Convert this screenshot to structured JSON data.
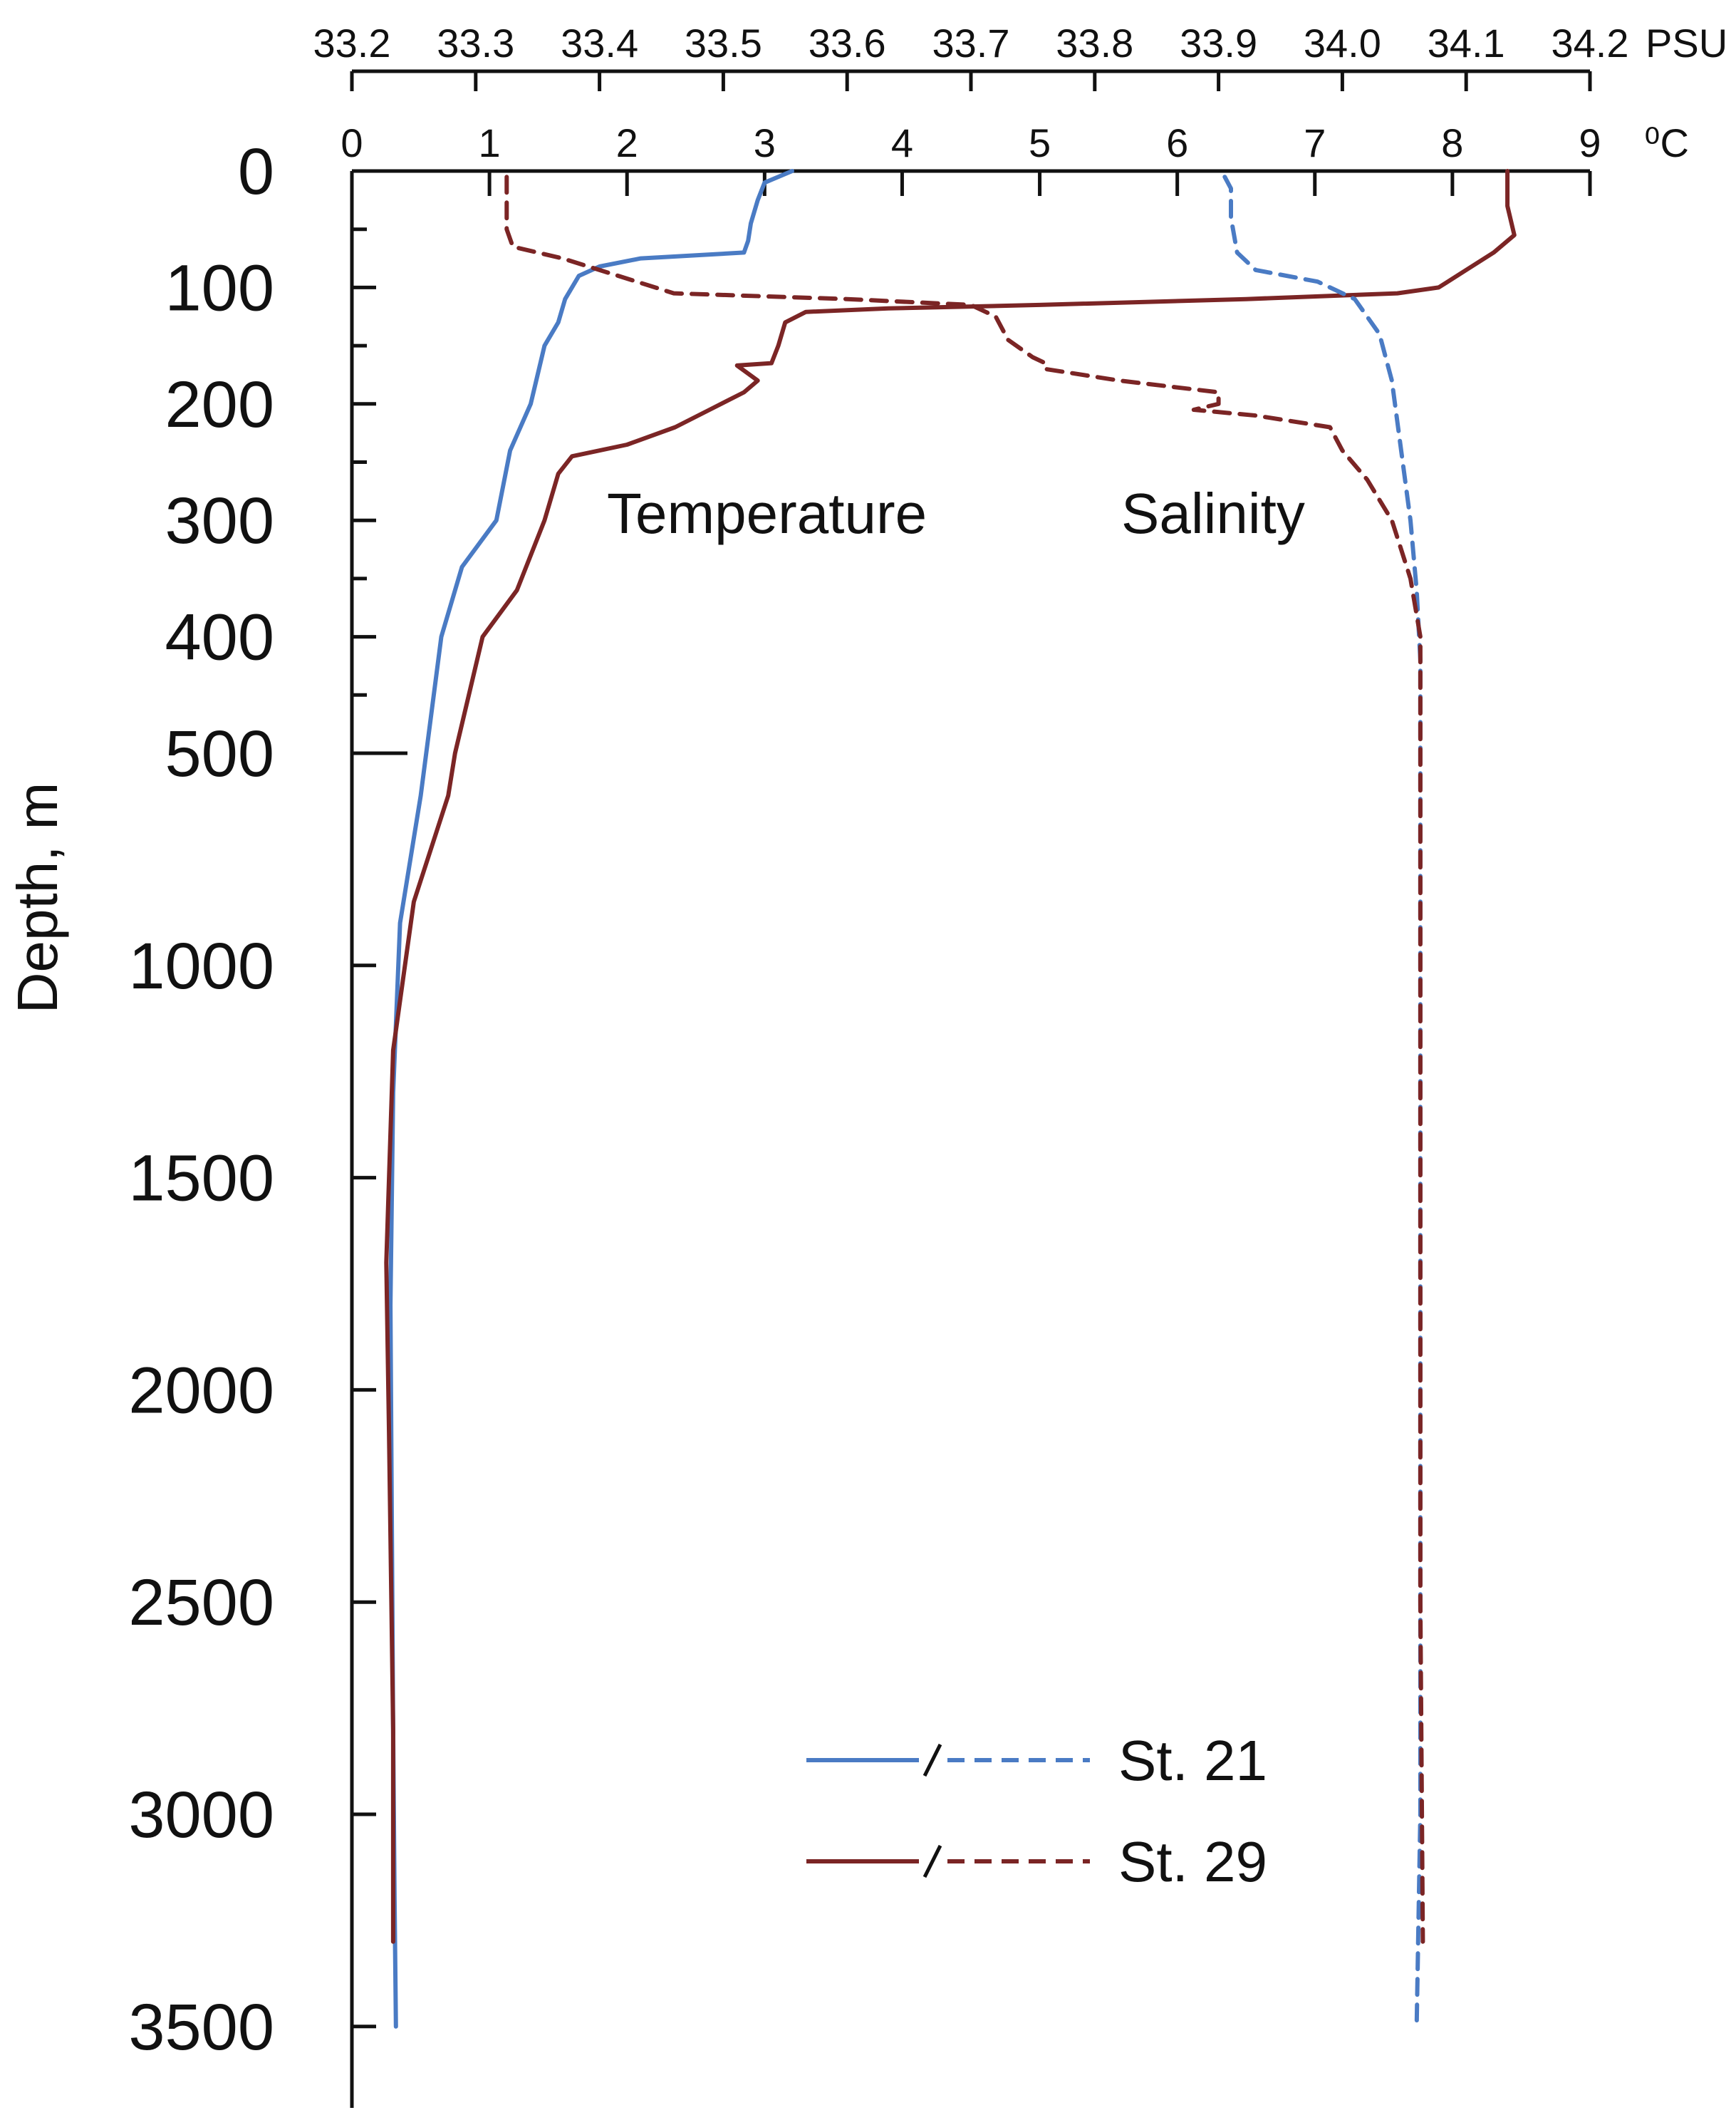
{
  "chart_data": {
    "type": "line",
    "title": "",
    "ylabel": "Depth, m",
    "y_axis": {
      "ticks": [
        0,
        100,
        200,
        300,
        400,
        500,
        1000,
        1500,
        2000,
        2500,
        3000,
        3500
      ],
      "tick_labels": [
        "0",
        "100",
        "200",
        "300",
        "400",
        "500",
        "1000",
        "1500",
        "2000",
        "2500",
        "3000",
        "3500"
      ],
      "note": "broken scale: 0-500 m expanded, 500-3500 m compressed",
      "reversed": true
    },
    "x_axis_salinity": {
      "unit": "PSU",
      "ticks": [
        33.2,
        33.3,
        33.4,
        33.5,
        33.6,
        33.7,
        33.8,
        33.9,
        34.0,
        34.1,
        34.2
      ],
      "tick_labels": [
        "33.2",
        "33.3",
        "33.4",
        "33.5",
        "33.6",
        "33.7",
        "33.8",
        "33.9",
        "34.0",
        "34.1",
        "34.2"
      ]
    },
    "x_axis_temperature": {
      "unit": "⁰C",
      "ticks": [
        0,
        1,
        2,
        3,
        4,
        5,
        6,
        7,
        8,
        9
      ],
      "tick_labels": [
        "0",
        "1",
        "2",
        "3",
        "4",
        "5",
        "6",
        "7",
        "8",
        "9"
      ]
    },
    "annotations": [
      "Temperature",
      "Salinity"
    ],
    "series": [
      {
        "name": "St. 21",
        "variable": "Temperature",
        "axis": "temperature",
        "color": "#4a7bc4",
        "style": "solid",
        "points": [
          [
            3.2,
            0
          ],
          [
            3.0,
            10
          ],
          [
            2.95,
            25
          ],
          [
            2.9,
            45
          ],
          [
            2.88,
            60
          ],
          [
            2.85,
            70
          ],
          [
            2.1,
            75
          ],
          [
            1.8,
            82
          ],
          [
            1.65,
            90
          ],
          [
            1.55,
            110
          ],
          [
            1.5,
            130
          ],
          [
            1.4,
            150
          ],
          [
            1.35,
            175
          ],
          [
            1.3,
            200
          ],
          [
            1.15,
            240
          ],
          [
            1.05,
            300
          ],
          [
            0.8,
            340
          ],
          [
            0.65,
            400
          ],
          [
            0.5,
            600
          ],
          [
            0.35,
            900
          ],
          [
            0.3,
            1300
          ],
          [
            0.28,
            1800
          ],
          [
            0.29,
            2300
          ],
          [
            0.3,
            2800
          ],
          [
            0.31,
            3200
          ],
          [
            0.32,
            3500
          ]
        ]
      },
      {
        "name": "St. 29",
        "variable": "Temperature",
        "axis": "temperature",
        "color": "#7b2525",
        "style": "solid",
        "points": [
          [
            8.4,
            0
          ],
          [
            8.4,
            30
          ],
          [
            8.45,
            55
          ],
          [
            8.3,
            70
          ],
          [
            8.1,
            85
          ],
          [
            7.9,
            100
          ],
          [
            7.6,
            105
          ],
          [
            6.5,
            110
          ],
          [
            5.0,
            115
          ],
          [
            3.9,
            118
          ],
          [
            3.3,
            121
          ],
          [
            3.15,
            130
          ],
          [
            3.1,
            150
          ],
          [
            3.05,
            165
          ],
          [
            2.8,
            167
          ],
          [
            2.95,
            180
          ],
          [
            2.85,
            190
          ],
          [
            2.6,
            205
          ],
          [
            2.35,
            220
          ],
          [
            2.0,
            235
          ],
          [
            1.6,
            245
          ],
          [
            1.5,
            260
          ],
          [
            1.4,
            300
          ],
          [
            1.2,
            360
          ],
          [
            0.95,
            400
          ],
          [
            0.75,
            500
          ],
          [
            0.7,
            600
          ],
          [
            0.45,
            850
          ],
          [
            0.3,
            1200
          ],
          [
            0.25,
            1700
          ],
          [
            0.27,
            2100
          ],
          [
            0.3,
            2800
          ],
          [
            0.3,
            3300
          ]
        ]
      },
      {
        "name": "St. 21",
        "variable": "Salinity",
        "axis": "salinity",
        "color": "#4a7bc4",
        "style": "dashed",
        "points": [
          [
            33.905,
            5
          ],
          [
            33.91,
            15
          ],
          [
            33.91,
            40
          ],
          [
            33.915,
            70
          ],
          [
            33.93,
            85
          ],
          [
            33.98,
            95
          ],
          [
            34.01,
            110
          ],
          [
            34.03,
            140
          ],
          [
            34.04,
            180
          ],
          [
            34.045,
            220
          ],
          [
            34.05,
            260
          ],
          [
            34.055,
            300
          ],
          [
            34.06,
            360
          ],
          [
            34.063,
            420
          ],
          [
            34.063,
            700
          ],
          [
            34.063,
            1500
          ],
          [
            34.063,
            2500
          ],
          [
            34.063,
            3000
          ],
          [
            34.06,
            3500
          ]
        ]
      },
      {
        "name": "St. 29",
        "variable": "Salinity",
        "axis": "salinity",
        "color": "#7b2525",
        "style": "dashed",
        "points": [
          [
            33.325,
            5
          ],
          [
            33.325,
            50
          ],
          [
            33.33,
            65
          ],
          [
            33.37,
            75
          ],
          [
            33.4,
            85
          ],
          [
            33.43,
            95
          ],
          [
            33.46,
            105
          ],
          [
            33.6,
            110
          ],
          [
            33.7,
            115
          ],
          [
            33.72,
            125
          ],
          [
            33.73,
            145
          ],
          [
            33.75,
            160
          ],
          [
            33.76,
            165
          ],
          [
            33.76,
            170
          ],
          [
            33.82,
            180
          ],
          [
            33.9,
            190
          ],
          [
            33.9,
            200
          ],
          [
            33.88,
            205
          ],
          [
            33.93,
            210
          ],
          [
            33.99,
            220
          ],
          [
            34.0,
            240
          ],
          [
            34.02,
            265
          ],
          [
            34.04,
            300
          ],
          [
            34.055,
            350
          ],
          [
            34.063,
            400
          ],
          [
            34.063,
            700
          ],
          [
            34.063,
            1500
          ],
          [
            34.063,
            2500
          ],
          [
            34.065,
            3300
          ]
        ]
      }
    ],
    "legend": {
      "placement": "bottom-right",
      "entries": [
        {
          "label": "St. 21",
          "color": "#4a7bc4"
        },
        {
          "label": "St. 29",
          "color": "#7b2525"
        }
      ]
    }
  }
}
